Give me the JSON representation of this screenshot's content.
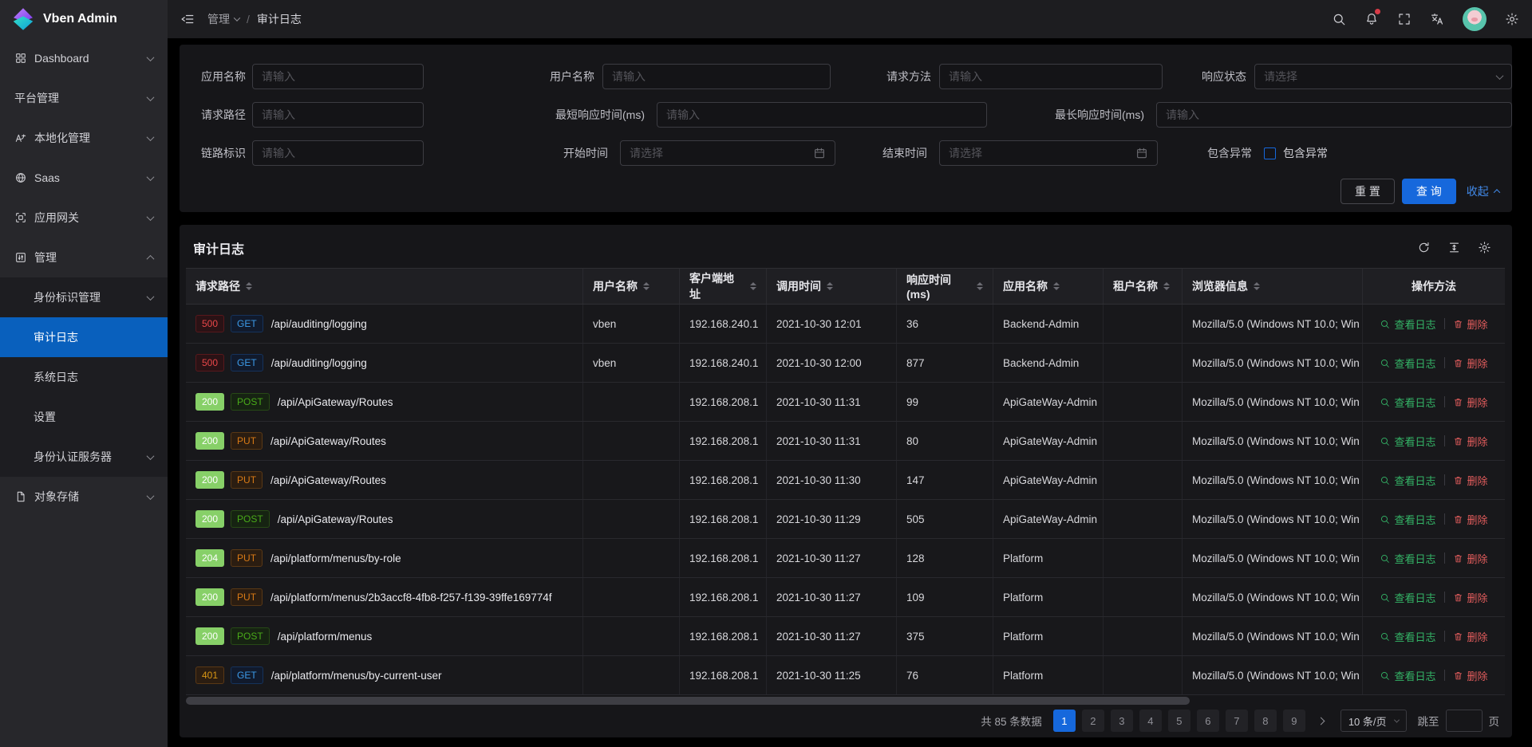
{
  "app": {
    "title": "Vben Admin"
  },
  "header": {
    "breadcrumb": [
      "管理",
      "审计日志"
    ],
    "separator": "/"
  },
  "sidebar": {
    "items": [
      {
        "name": "dashboard",
        "label": "Dashboard",
        "icon": "dashboard",
        "chevron": "down"
      },
      {
        "name": "platform-management",
        "label": "平台管理",
        "icon": null,
        "chevron": "down"
      },
      {
        "name": "localization-management",
        "label": "本地化管理",
        "icon": "locale",
        "chevron": "down"
      },
      {
        "name": "saas",
        "label": "Saas",
        "icon": "saas",
        "chevron": "down"
      },
      {
        "name": "app-gateway",
        "label": "应用网关",
        "icon": "gateway",
        "chevron": "down"
      },
      {
        "name": "management",
        "label": "管理",
        "icon": "manage",
        "chevron": "up"
      },
      {
        "name": "identity-management",
        "label": "身份标识管理",
        "indent": true,
        "chevron": "down"
      },
      {
        "name": "audit-logs",
        "label": "审计日志",
        "indent": true,
        "selected": true
      },
      {
        "name": "system-logs",
        "label": "系统日志",
        "indent": true
      },
      {
        "name": "settings",
        "label": "设置",
        "indent": true
      },
      {
        "name": "auth-server",
        "label": "身份认证服务器",
        "indent": true,
        "chevron": "down"
      },
      {
        "name": "object-storage",
        "label": "对象存储",
        "icon": "storage",
        "chevron": "down"
      }
    ]
  },
  "filter": {
    "app_name": {
      "label": "应用名称",
      "placeholder": "请输入"
    },
    "user_name": {
      "label": "用户名称",
      "placeholder": "请输入"
    },
    "method": {
      "label": "请求方法",
      "placeholder": "请输入"
    },
    "status": {
      "label": "响应状态",
      "placeholder": "请选择"
    },
    "path": {
      "label": "请求路径",
      "placeholder": "请输入"
    },
    "min_time": {
      "label": "最短响应时间(ms)",
      "placeholder": "请输入"
    },
    "max_time": {
      "label": "最长响应时间(ms)",
      "placeholder": "请输入"
    },
    "trace_id": {
      "label": "链路标识",
      "placeholder": "请输入"
    },
    "start_time": {
      "label": "开始时间",
      "placeholder": "请选择"
    },
    "end_time": {
      "label": "结束时间",
      "placeholder": "请选择"
    },
    "has_exception": {
      "label": "包含异常",
      "checkbox_label": "包含异常",
      "checked": false
    },
    "buttons": {
      "reset": "重 置",
      "search": "查 询",
      "collapse": "收起"
    }
  },
  "table": {
    "title": "审计日志",
    "columns": [
      {
        "key": "request_path",
        "label": "请求路径",
        "sortable": true
      },
      {
        "key": "user_name",
        "label": "用户名称",
        "sortable": true
      },
      {
        "key": "client_address",
        "label": "客户端地址",
        "sortable": true
      },
      {
        "key": "call_time",
        "label": "调用时间",
        "sortable": true
      },
      {
        "key": "response_time",
        "label": "响应时间(ms)",
        "sortable": true
      },
      {
        "key": "app_name",
        "label": "应用名称",
        "sortable": true
      },
      {
        "key": "tenant_name",
        "label": "租户名称",
        "sortable": true
      },
      {
        "key": "browser_info",
        "label": "浏览器信息",
        "sortable": true
      },
      {
        "key": "actions",
        "label": "操作方法",
        "sortable": false
      }
    ],
    "row_actions": {
      "view": "查看日志",
      "delete": "删除"
    },
    "rows": [
      {
        "status": "500",
        "method": "GET",
        "path": "/api/auditing/logging",
        "user": "vben",
        "client": "192.168.240.1",
        "time": "2021-10-30 12:01",
        "response_ms": "36",
        "app": "Backend-Admin",
        "tenant": "",
        "browser": "Mozilla/5.0 (Windows NT 10.0; Win"
      },
      {
        "status": "500",
        "method": "GET",
        "path": "/api/auditing/logging",
        "user": "vben",
        "client": "192.168.240.1",
        "time": "2021-10-30 12:00",
        "response_ms": "877",
        "app": "Backend-Admin",
        "tenant": "",
        "browser": "Mozilla/5.0 (Windows NT 10.0; Win"
      },
      {
        "status": "200",
        "method": "POST",
        "path": "/api/ApiGateway/Routes",
        "user": "",
        "client": "192.168.208.1",
        "time": "2021-10-30 11:31",
        "response_ms": "99",
        "app": "ApiGateWay-Admin",
        "tenant": "",
        "browser": "Mozilla/5.0 (Windows NT 10.0; Win"
      },
      {
        "status": "200",
        "method": "PUT",
        "path": "/api/ApiGateway/Routes",
        "user": "",
        "client": "192.168.208.1",
        "time": "2021-10-30 11:31",
        "response_ms": "80",
        "app": "ApiGateWay-Admin",
        "tenant": "",
        "browser": "Mozilla/5.0 (Windows NT 10.0; Win"
      },
      {
        "status": "200",
        "method": "PUT",
        "path": "/api/ApiGateway/Routes",
        "user": "",
        "client": "192.168.208.1",
        "time": "2021-10-30 11:30",
        "response_ms": "147",
        "app": "ApiGateWay-Admin",
        "tenant": "",
        "browser": "Mozilla/5.0 (Windows NT 10.0; Win"
      },
      {
        "status": "200",
        "method": "POST",
        "path": "/api/ApiGateway/Routes",
        "user": "",
        "client": "192.168.208.1",
        "time": "2021-10-30 11:29",
        "response_ms": "505",
        "app": "ApiGateWay-Admin",
        "tenant": "",
        "browser": "Mozilla/5.0 (Windows NT 10.0; Win"
      },
      {
        "status": "204",
        "method": "PUT",
        "path": "/api/platform/menus/by-role",
        "user": "",
        "client": "192.168.208.1",
        "time": "2021-10-30 11:27",
        "response_ms": "128",
        "app": "Platform",
        "tenant": "",
        "browser": "Mozilla/5.0 (Windows NT 10.0; Win"
      },
      {
        "status": "200",
        "method": "PUT",
        "path": "/api/platform/menus/2b3accf8-4fb8-f257-f139-39ffe169774f",
        "user": "",
        "client": "192.168.208.1",
        "time": "2021-10-30 11:27",
        "response_ms": "109",
        "app": "Platform",
        "tenant": "",
        "browser": "Mozilla/5.0 (Windows NT 10.0; Win"
      },
      {
        "status": "200",
        "method": "POST",
        "path": "/api/platform/menus",
        "user": "",
        "client": "192.168.208.1",
        "time": "2021-10-30 11:27",
        "response_ms": "375",
        "app": "Platform",
        "tenant": "",
        "browser": "Mozilla/5.0 (Windows NT 10.0; Win"
      },
      {
        "status": "401",
        "method": "GET",
        "path": "/api/platform/menus/by-current-user",
        "user": "",
        "client": "192.168.208.1",
        "time": "2021-10-30 11:25",
        "response_ms": "76",
        "app": "Platform",
        "tenant": "",
        "browser": "Mozilla/5.0 (Windows NT 10.0; Win"
      }
    ]
  },
  "pagination": {
    "total_text": "共 85 条数据",
    "pages": [
      "1",
      "2",
      "3",
      "4",
      "5",
      "6",
      "7",
      "8",
      "9"
    ],
    "active_page": "1",
    "page_size": "10 条/页",
    "jump_prefix": "跳至",
    "jump_suffix": "页",
    "jump_value": ""
  },
  "colors": {
    "primary": "#1668dc",
    "selected_menu": "#0960bd",
    "success": "#87d068",
    "error": "#e84749",
    "warning": "#d89614"
  }
}
